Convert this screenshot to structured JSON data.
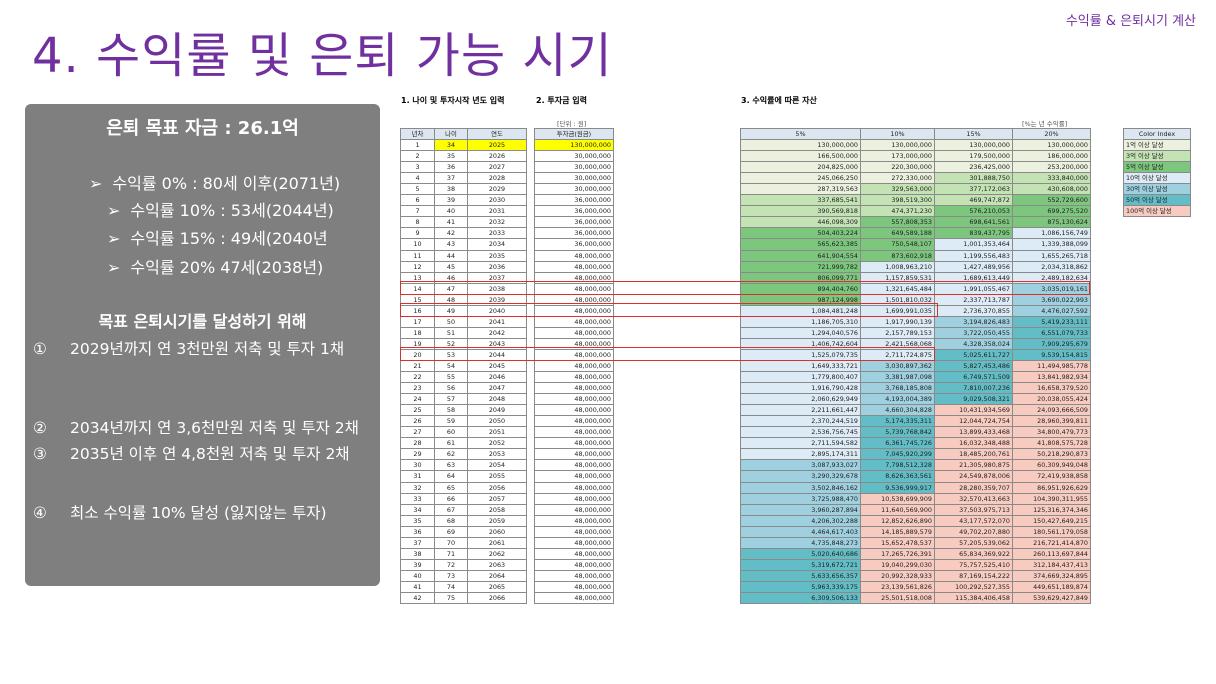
{
  "corner_label": "수익률 & 은퇴시기 계산",
  "title": "4. 수익률 및 은퇴 가능 시기",
  "panel": {
    "target": "은퇴 목표 자금 : 26.1억",
    "goals": [
      {
        "arrow": "➢",
        "text": "수익률 0% : 80세 이후(2071년)"
      },
      {
        "arrow": "➢",
        "text": "수익률 10% : 53세(2044년)"
      },
      {
        "arrow": "➢",
        "text": "수익률 15% : 49세(2040년"
      },
      {
        "arrow": "➢",
        "text": "수익률 20%  47세(2038년)"
      }
    ],
    "subtitle": "목표 은퇴시기를 달성하기 위해",
    "steps": [
      {
        "num": "①",
        "text": " 2029년까지 연 3천만원 저축 및 투자 1채"
      },
      {
        "num": "②",
        "text": "2034년까지 연 3,6천만원 저축 및 투자 2채"
      },
      {
        "num": "③",
        "text": "2035년 이후 연 4,8천원 저축 및 투자 2채"
      },
      {
        "num": "④",
        "text": "최소 수익률 10% 달성 (잃지않는 투자)"
      }
    ]
  },
  "sheet": {
    "section1": "1. 나이 및 투자시작 년도 입력",
    "section2": "2. 투자금 입력",
    "section3": "3. 수익률에 따른 자산",
    "unit_note": "[단위 : 원]",
    "rate_note": "[%는 년 수익률]",
    "left_headers": [
      "년차",
      "나이",
      "연도"
    ],
    "invest_header": "투자금(원금)",
    "rate_headers": [
      "5%",
      "10%",
      "15%",
      "20%"
    ],
    "legend": {
      "title": "Color Index",
      "items": [
        {
          "label": "1억 이상 달성",
          "color": "#ebf1de"
        },
        {
          "label": "3억 이상 달성",
          "color": "#c4e3b4"
        },
        {
          "label": "5억 이상 달성",
          "color": "#7cc67e"
        },
        {
          "label": "10억 이상 달성",
          "color": "#ddebf7"
        },
        {
          "label": "30억 이상 달성",
          "color": "#9fd0e0"
        },
        {
          "label": "50억 이상 달성",
          "color": "#62bdc6"
        },
        {
          "label": "100억 이상 달성",
          "color": "#f8cbc1"
        }
      ]
    },
    "rows": [
      [
        "1",
        "34",
        "2025",
        "130,000,000",
        "130,000,000",
        "130,000,000",
        "130,000,000",
        "130,000,000"
      ],
      [
        "2",
        "35",
        "2026",
        "30,000,000",
        "166,500,000",
        "173,000,000",
        "179,500,000",
        "186,000,000"
      ],
      [
        "3",
        "36",
        "2027",
        "30,000,000",
        "204,825,000",
        "220,300,000",
        "236,425,000",
        "253,200,000"
      ],
      [
        "4",
        "37",
        "2028",
        "30,000,000",
        "245,066,250",
        "272,330,000",
        "301,888,750",
        "333,840,000"
      ],
      [
        "5",
        "38",
        "2029",
        "30,000,000",
        "287,319,563",
        "329,563,000",
        "377,172,063",
        "430,608,000"
      ],
      [
        "6",
        "39",
        "2030",
        "36,000,000",
        "337,685,541",
        "398,519,300",
        "469,747,872",
        "552,729,600"
      ],
      [
        "7",
        "40",
        "2031",
        "36,000,000",
        "390,569,818",
        "474,371,230",
        "576,210,053",
        "699,275,520"
      ],
      [
        "8",
        "41",
        "2032",
        "36,000,000",
        "446,098,309",
        "557,808,353",
        "698,641,561",
        "875,130,624"
      ],
      [
        "9",
        "42",
        "2033",
        "36,000,000",
        "504,403,224",
        "649,589,188",
        "839,437,795",
        "1,086,156,749"
      ],
      [
        "10",
        "43",
        "2034",
        "36,000,000",
        "565,623,385",
        "750,548,107",
        "1,001,353,464",
        "1,339,388,099"
      ],
      [
        "11",
        "44",
        "2035",
        "48,000,000",
        "641,904,554",
        "873,602,918",
        "1,199,556,483",
        "1,655,265,718"
      ],
      [
        "12",
        "45",
        "2036",
        "48,000,000",
        "721,999,782",
        "1,008,963,210",
        "1,427,489,956",
        "2,034,318,862"
      ],
      [
        "13",
        "46",
        "2037",
        "48,000,000",
        "806,099,771",
        "1,157,859,531",
        "1,689,613,449",
        "2,489,182,634"
      ],
      [
        "14",
        "47",
        "2038",
        "48,000,000",
        "894,404,760",
        "1,321,645,484",
        "1,991,055,467",
        "3,035,019,161"
      ],
      [
        "15",
        "48",
        "2039",
        "48,000,000",
        "987,124,998",
        "1,501,810,032",
        "2,337,713,787",
        "3,690,022,993"
      ],
      [
        "16",
        "49",
        "2040",
        "48,000,000",
        "1,084,481,248",
        "1,699,991,035",
        "2,736,370,855",
        "4,476,027,592"
      ],
      [
        "17",
        "50",
        "2041",
        "48,000,000",
        "1,186,705,310",
        "1,917,990,139",
        "3,194,826,483",
        "5,419,233,111"
      ],
      [
        "18",
        "51",
        "2042",
        "48,000,000",
        "1,294,040,576",
        "2,157,789,153",
        "3,722,050,455",
        "6,551,079,733"
      ],
      [
        "19",
        "52",
        "2043",
        "48,000,000",
        "1,406,742,604",
        "2,421,568,068",
        "4,328,358,024",
        "7,909,295,679"
      ],
      [
        "20",
        "53",
        "2044",
        "48,000,000",
        "1,525,079,735",
        "2,711,724,875",
        "5,025,611,727",
        "9,539,154,815"
      ],
      [
        "21",
        "54",
        "2045",
        "48,000,000",
        "1,649,333,721",
        "3,030,897,362",
        "5,827,453,486",
        "11,494,985,778"
      ],
      [
        "22",
        "55",
        "2046",
        "48,000,000",
        "1,779,800,407",
        "3,381,987,098",
        "6,749,571,509",
        "13,841,982,934"
      ],
      [
        "23",
        "56",
        "2047",
        "48,000,000",
        "1,916,790,428",
        "3,768,185,808",
        "7,810,007,236",
        "16,658,379,520"
      ],
      [
        "24",
        "57",
        "2048",
        "48,000,000",
        "2,060,629,949",
        "4,193,004,389",
        "9,029,508,321",
        "20,038,055,424"
      ],
      [
        "25",
        "58",
        "2049",
        "48,000,000",
        "2,211,661,447",
        "4,660,304,828",
        "10,431,934,569",
        "24,093,666,509"
      ],
      [
        "26",
        "59",
        "2050",
        "48,000,000",
        "2,370,244,519",
        "5,174,335,311",
        "12,044,724,754",
        "28,960,399,811"
      ],
      [
        "27",
        "60",
        "2051",
        "48,000,000",
        "2,536,756,745",
        "5,739,768,842",
        "13,899,433,468",
        "34,800,479,773"
      ],
      [
        "28",
        "61",
        "2052",
        "48,000,000",
        "2,711,594,582",
        "6,361,745,726",
        "16,032,348,488",
        "41,808,575,728"
      ],
      [
        "29",
        "62",
        "2053",
        "48,000,000",
        "2,895,174,311",
        "7,045,920,299",
        "18,485,200,761",
        "50,218,290,873"
      ],
      [
        "30",
        "63",
        "2054",
        "48,000,000",
        "3,087,933,027",
        "7,798,512,328",
        "21,305,980,875",
        "60,309,949,048"
      ],
      [
        "31",
        "64",
        "2055",
        "48,000,000",
        "3,290,329,678",
        "8,626,363,561",
        "24,549,878,006",
        "72,419,938,858"
      ],
      [
        "32",
        "65",
        "2056",
        "48,000,000",
        "3,502,846,162",
        "9,536,999,917",
        "28,280,359,707",
        "86,951,926,629"
      ],
      [
        "33",
        "66",
        "2057",
        "48,000,000",
        "3,725,988,470",
        "10,538,699,909",
        "32,570,413,663",
        "104,390,311,955"
      ],
      [
        "34",
        "67",
        "2058",
        "48,000,000",
        "3,960,287,894",
        "11,640,569,900",
        "37,503,975,713",
        "125,316,374,346"
      ],
      [
        "35",
        "68",
        "2059",
        "48,000,000",
        "4,206,302,288",
        "12,852,626,890",
        "43,177,572,070",
        "150,427,649,215"
      ],
      [
        "36",
        "69",
        "2060",
        "48,000,000",
        "4,464,617,403",
        "14,185,889,579",
        "49,702,207,880",
        "180,561,179,058"
      ],
      [
        "37",
        "70",
        "2061",
        "48,000,000",
        "4,735,848,273",
        "15,652,478,537",
        "57,205,539,062",
        "216,721,414,870"
      ],
      [
        "38",
        "71",
        "2062",
        "48,000,000",
        "5,020,640,686",
        "17,265,726,391",
        "65,834,369,922",
        "260,113,697,844"
      ],
      [
        "39",
        "72",
        "2063",
        "48,000,000",
        "5,319,672,721",
        "19,040,299,030",
        "75,757,525,410",
        "312,184,437,413"
      ],
      [
        "40",
        "73",
        "2064",
        "48,000,000",
        "5,633,656,357",
        "20,992,328,933",
        "87,169,154,222",
        "374,669,324,895"
      ],
      [
        "41",
        "74",
        "2065",
        "48,000,000",
        "5,963,339,175",
        "23,139,561,826",
        "100,292,527,355",
        "449,651,189,874"
      ],
      [
        "42",
        "75",
        "2066",
        "48,000,000",
        "6,309,506,133",
        "25,501,518,008",
        "115,384,406,458",
        "539,629,427,849"
      ]
    ]
  },
  "colors": {
    "accent": "#7030a0",
    "panel": "#7f7f7f",
    "highlight": "#d9302c",
    "input_yellow": "#ffff00"
  }
}
